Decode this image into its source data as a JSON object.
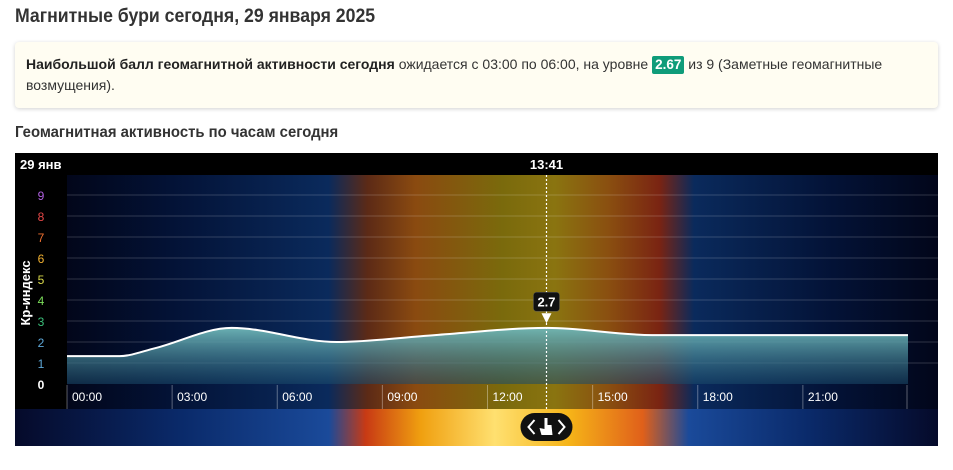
{
  "page": {
    "title": "Магнитные бури сегодня, 29 января 2025",
    "summary_bold": "Наибольшой балл геомагнитной активности сегодня",
    "summary_mid": " ожидается с 03:00 по 06:00, на уровне ",
    "summary_value": "2.67",
    "summary_tail": " из 9 (Заметные геомагнитные возмущения).",
    "section_title": "Геомагнитная активность по часам сегодня"
  },
  "colors": {
    "accent_badge": "#0f9c7a",
    "curve_fill": "#5fa9ad",
    "curve_line": "#ffffff"
  },
  "chart_data": {
    "type": "area",
    "date_label": "29 янв",
    "ylabel": "Кр-индекс",
    "ylim": [
      0,
      9
    ],
    "y_ticks": [
      {
        "label": "0",
        "color": "#ffffff"
      },
      {
        "label": "1",
        "color": "#5ea8d8"
      },
      {
        "label": "2",
        "color": "#5ea8d8"
      },
      {
        "label": "3",
        "color": "#3bbf7a"
      },
      {
        "label": "4",
        "color": "#7bdc5a"
      },
      {
        "label": "5",
        "color": "#d8d84a"
      },
      {
        "label": "6",
        "color": "#f0b030"
      },
      {
        "label": "7",
        "color": "#f07030"
      },
      {
        "label": "8",
        "color": "#e84848"
      },
      {
        "label": "9",
        "color": "#b060e0"
      }
    ],
    "x_ticks": [
      "00:00",
      "03:00",
      "06:00",
      "09:00",
      "12:00",
      "15:00",
      "18:00",
      "21:00"
    ],
    "xlim_hours": [
      0,
      24
    ],
    "series": [
      {
        "hours": [
          0,
          1.5,
          2.5,
          4.7,
          7.7,
          10.5,
          13.7,
          16.7,
          20,
          24
        ],
        "values": [
          1.33,
          1.33,
          1.7,
          2.67,
          2.0,
          2.33,
          2.67,
          2.33,
          2.33,
          2.33
        ]
      }
    ],
    "current_time": "13:41",
    "current_value": "2.7",
    "grid": true,
    "nav_control": "chevron-arrows"
  }
}
